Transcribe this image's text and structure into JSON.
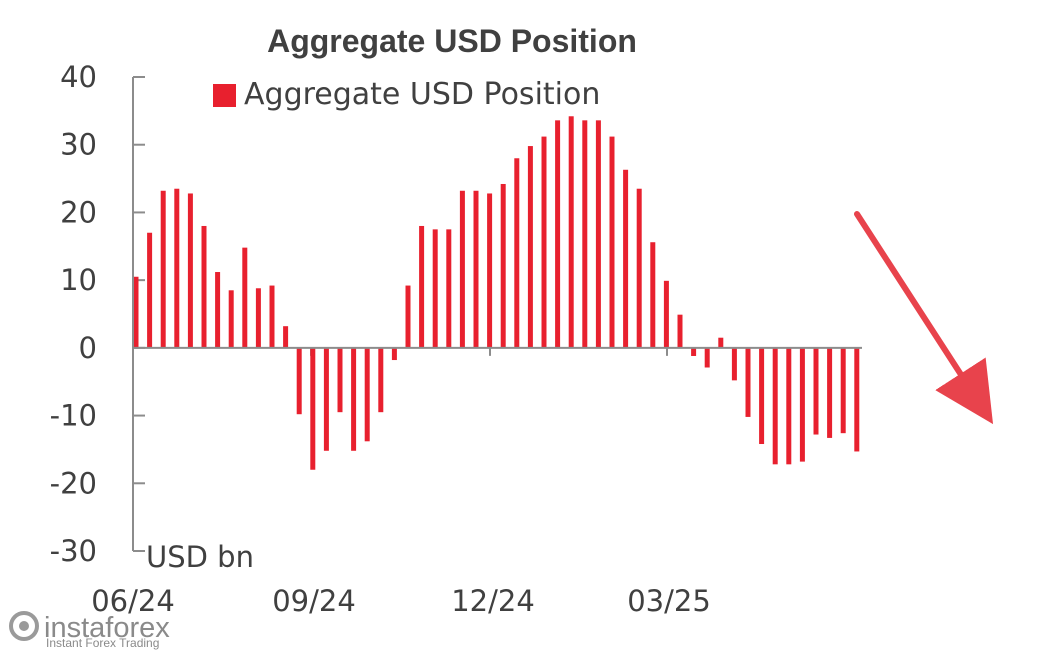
{
  "chart_data": {
    "type": "bar",
    "title": "Aggregate USD Position",
    "ylabel": "USD bn",
    "xlabel": "",
    "ylim": [
      -30,
      40
    ],
    "y_ticks": [
      40,
      30,
      20,
      10,
      0,
      -10,
      -20,
      -30
    ],
    "x_tick_labels": [
      "06/24",
      "09/24",
      "12/24",
      "03/25"
    ],
    "legend": "top",
    "series": [
      {
        "name": "Aggregate USD Position",
        "color": "#e8202e",
        "values": [
          10.5,
          17,
          23.2,
          23.5,
          22.8,
          18,
          11.2,
          8.5,
          14.8,
          8.8,
          9.2,
          3.2,
          -9.8,
          -18,
          -15.2,
          -9.5,
          -15.2,
          -13.8,
          -9.5,
          -1.8,
          9.2,
          18,
          17.5,
          17.5,
          23.2,
          23.2,
          22.8,
          24.2,
          28,
          29.8,
          31.2,
          33.6,
          34.2,
          33.6,
          33.6,
          31.2,
          26.3,
          23.5,
          15.6,
          9.9,
          4.9,
          -1.2,
          -2.9,
          1.5,
          -4.8,
          -10.2,
          -14.2,
          -17.2,
          -17.2,
          -16.8,
          -12.8,
          -13.3,
          -12.6,
          -15.3
        ]
      }
    ],
    "annotations": [
      {
        "type": "arrow",
        "color": "#e8434c",
        "meaning": "downward trend"
      }
    ]
  },
  "watermark": {
    "name": "instaforex",
    "tagline": "Instant Forex Trading",
    "icon": "instaforex-logo-icon"
  }
}
